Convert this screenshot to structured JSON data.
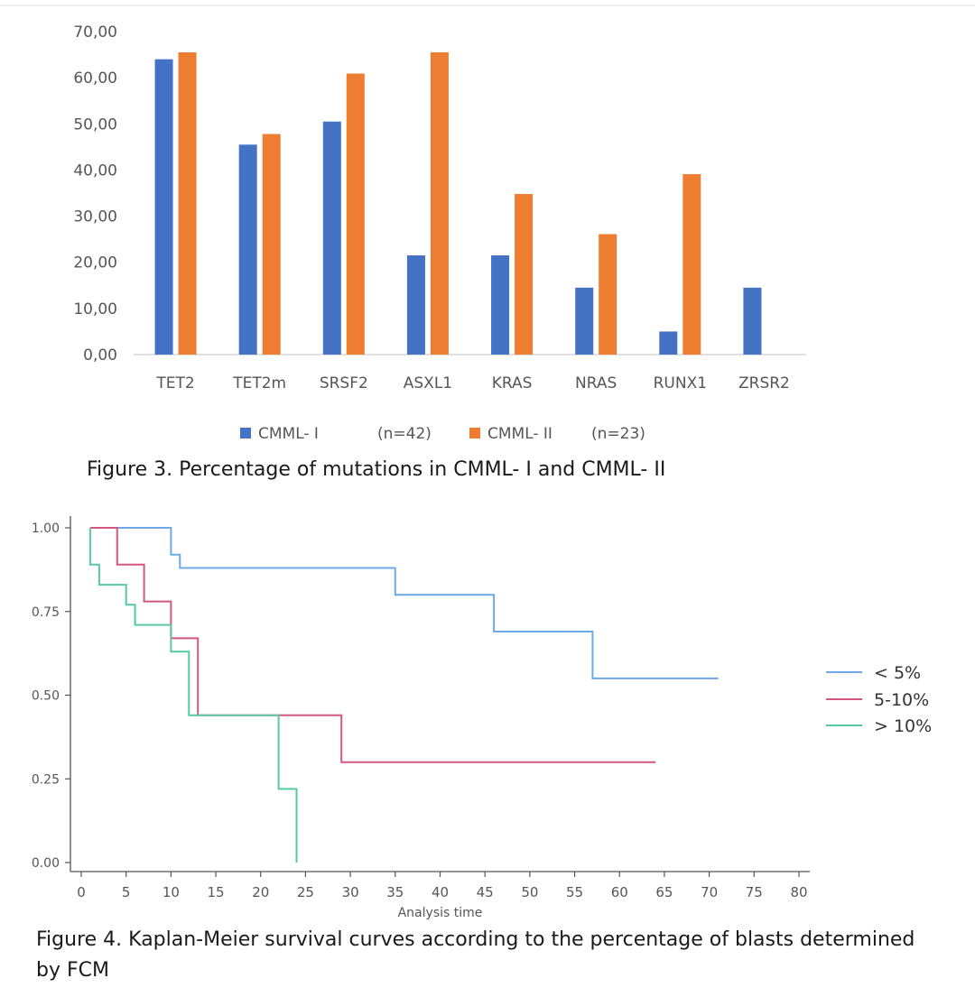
{
  "figure3": {
    "caption": "Figure 3. Percentage of mutations in CMML- I and CMML- II",
    "chart_data": {
      "type": "bar",
      "categories": [
        "TET2",
        "TET2m",
        "SRSF2",
        "ASXL1",
        "KRAS",
        "NRAS",
        "RUNX1",
        "ZRSR2"
      ],
      "series": [
        {
          "name": "CMML- I",
          "legend_label": "CMML- I",
          "legend_n": "(n=42)",
          "color": "#4472c4",
          "values": [
            64.0,
            45.5,
            50.5,
            21.5,
            21.5,
            14.5,
            5.0,
            14.5
          ]
        },
        {
          "name": "CMML- II",
          "legend_label": "CMML- II",
          "legend_n": "(n=23)",
          "color": "#ed7d31",
          "values": [
            65.5,
            47.8,
            60.9,
            65.5,
            34.8,
            26.1,
            39.1,
            0
          ]
        }
      ],
      "ylim": [
        0,
        70
      ],
      "yticks": [
        "0,00",
        "10,00",
        "20,00",
        "30,00",
        "40,00",
        "50,00",
        "60,00",
        "70,00"
      ],
      "grid": false,
      "legend_position": "bottom"
    }
  },
  "figure4": {
    "caption": "Figure 4. Kaplan-Meier survival curves according to the percentage of blasts determined by FCM",
    "chart_data": {
      "type": "line",
      "step": true,
      "xlabel": "Analysis time",
      "xlim": [
        0,
        80
      ],
      "ylim": [
        0,
        1
      ],
      "xticks": [
        0,
        5,
        10,
        15,
        20,
        25,
        30,
        35,
        40,
        45,
        50,
        55,
        60,
        65,
        70,
        75,
        80
      ],
      "yticks": [
        "0.00",
        "0.25",
        "0.50",
        "0.75",
        "1.00"
      ],
      "legend_position": "right",
      "series": [
        {
          "name": "< 5%",
          "color": "#6fa8e6",
          "points": [
            [
              1,
              1.0
            ],
            [
              10,
              1.0
            ],
            [
              10,
              0.92
            ],
            [
              11,
              0.92
            ],
            [
              11,
              0.88
            ],
            [
              35,
              0.88
            ],
            [
              35,
              0.8
            ],
            [
              46,
              0.8
            ],
            [
              46,
              0.69
            ],
            [
              57,
              0.69
            ],
            [
              57,
              0.55
            ],
            [
              71,
              0.55
            ]
          ]
        },
        {
          "name": "5-10%",
          "color": "#d5577f",
          "points": [
            [
              1,
              1.0
            ],
            [
              4,
              1.0
            ],
            [
              4,
              0.89
            ],
            [
              7,
              0.89
            ],
            [
              7,
              0.78
            ],
            [
              10,
              0.78
            ],
            [
              10,
              0.67
            ],
            [
              13,
              0.67
            ],
            [
              13,
              0.44
            ],
            [
              29,
              0.44
            ],
            [
              29,
              0.3
            ],
            [
              64,
              0.3
            ]
          ]
        },
        {
          "name": "> 10%",
          "color": "#57c9a0",
          "points": [
            [
              1,
              1.0
            ],
            [
              1,
              0.89
            ],
            [
              2,
              0.89
            ],
            [
              2,
              0.83
            ],
            [
              5,
              0.83
            ],
            [
              5,
              0.77
            ],
            [
              6,
              0.77
            ],
            [
              6,
              0.71
            ],
            [
              10,
              0.71
            ],
            [
              10,
              0.63
            ],
            [
              12,
              0.63
            ],
            [
              12,
              0.44
            ],
            [
              22,
              0.44
            ],
            [
              22,
              0.22
            ],
            [
              24,
              0.22
            ],
            [
              24,
              0.0
            ]
          ]
        }
      ]
    }
  }
}
